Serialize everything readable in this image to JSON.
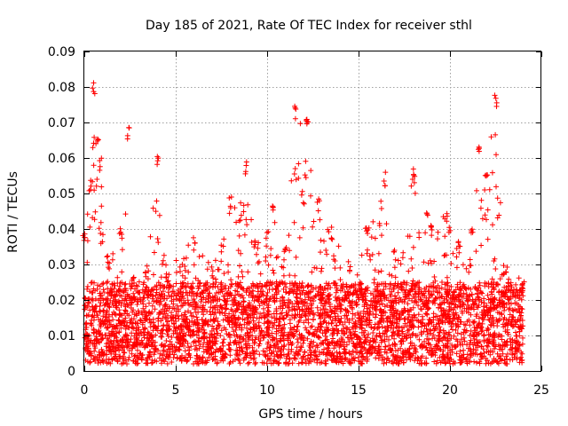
{
  "chart_data": {
    "type": "scatter",
    "title": "Day 185 of 2021, Rate Of TEC Index for receiver sthl",
    "xlabel": "GPS time / hours",
    "ylabel": "ROTI / TECUs",
    "xlim": [
      0,
      25
    ],
    "ylim": [
      0,
      0.09
    ],
    "xticks": [
      0,
      5,
      10,
      15,
      20,
      25
    ],
    "xtick_labels": [
      "0",
      "5",
      "10",
      "15",
      "20",
      "25"
    ],
    "yticks": [
      0,
      0.01,
      0.02,
      0.03,
      0.04,
      0.05,
      0.06,
      0.07,
      0.08,
      0.09
    ],
    "ytick_labels": [
      "0",
      "0.01",
      "0.02",
      "0.03",
      "0.04",
      "0.05",
      "0.06",
      "0.07",
      "0.08",
      "0.09"
    ],
    "grid": true,
    "marker": "+",
    "color": "#ff0000",
    "series": [
      {
        "name": "ROTI",
        "x_range": [
          0,
          24
        ],
        "baseline_range": [
          0.002,
          0.025
        ],
        "envelope": [
          {
            "x": 0,
            "y": 0.04
          },
          {
            "x": 0.3,
            "y": 0.054
          },
          {
            "x": 0.5,
            "y": 0.082
          },
          {
            "x": 0.7,
            "y": 0.066
          },
          {
            "x": 0.9,
            "y": 0.06
          },
          {
            "x": 1.3,
            "y": 0.032
          },
          {
            "x": 2.0,
            "y": 0.041
          },
          {
            "x": 2.4,
            "y": 0.069
          },
          {
            "x": 2.6,
            "y": 0.027
          },
          {
            "x": 3.4,
            "y": 0.03
          },
          {
            "x": 4.0,
            "y": 0.062
          },
          {
            "x": 4.5,
            "y": 0.028
          },
          {
            "x": 6.0,
            "y": 0.038
          },
          {
            "x": 7.0,
            "y": 0.03
          },
          {
            "x": 8.0,
            "y": 0.049
          },
          {
            "x": 8.8,
            "y": 0.059
          },
          {
            "x": 9.3,
            "y": 0.037
          },
          {
            "x": 10.3,
            "y": 0.047
          },
          {
            "x": 11.0,
            "y": 0.035
          },
          {
            "x": 11.5,
            "y": 0.075
          },
          {
            "x": 12.2,
            "y": 0.072
          },
          {
            "x": 12.8,
            "y": 0.049
          },
          {
            "x": 13.5,
            "y": 0.041
          },
          {
            "x": 14.5,
            "y": 0.031
          },
          {
            "x": 15.5,
            "y": 0.042
          },
          {
            "x": 16.4,
            "y": 0.056
          },
          {
            "x": 17.0,
            "y": 0.035
          },
          {
            "x": 18.0,
            "y": 0.058
          },
          {
            "x": 19.0,
            "y": 0.041
          },
          {
            "x": 19.8,
            "y": 0.046
          },
          {
            "x": 20.5,
            "y": 0.037
          },
          {
            "x": 21.2,
            "y": 0.041
          },
          {
            "x": 21.6,
            "y": 0.065
          },
          {
            "x": 22.0,
            "y": 0.057
          },
          {
            "x": 22.5,
            "y": 0.078
          },
          {
            "x": 23.0,
            "y": 0.03
          },
          {
            "x": 24.0,
            "y": 0.026
          }
        ]
      }
    ]
  }
}
